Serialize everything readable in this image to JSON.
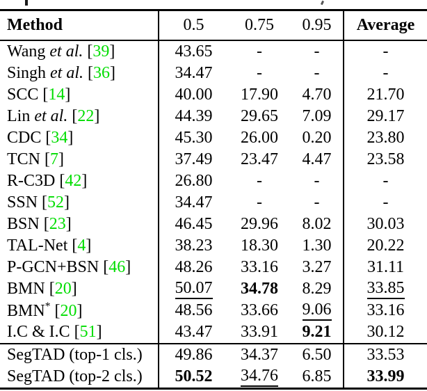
{
  "table": {
    "accent_green": "#00dd00",
    "columns": [
      "Method",
      "0.5",
      "0.75",
      "0.95",
      "Average"
    ],
    "rows": [
      {
        "method": [
          {
            "t": "Wang "
          },
          {
            "t": "et al.",
            "italic": true
          }
        ],
        "cite": "39",
        "values": [
          {
            "t": "43.65"
          },
          {
            "t": "-"
          },
          {
            "t": "-"
          },
          {
            "t": "-"
          }
        ],
        "section": "existing"
      },
      {
        "method": [
          {
            "t": "Singh "
          },
          {
            "t": "et al.",
            "italic": true
          }
        ],
        "cite": "36",
        "values": [
          {
            "t": "34.47"
          },
          {
            "t": "-"
          },
          {
            "t": "-"
          },
          {
            "t": "-"
          }
        ],
        "section": "existing"
      },
      {
        "method": [
          {
            "t": "SCC"
          }
        ],
        "cite": "14",
        "values": [
          {
            "t": "40.00"
          },
          {
            "t": "17.90"
          },
          {
            "t": "4.70"
          },
          {
            "t": "21.70"
          }
        ],
        "section": "existing"
      },
      {
        "method": [
          {
            "t": "Lin "
          },
          {
            "t": "et al.",
            "italic": true
          }
        ],
        "cite": "22",
        "values": [
          {
            "t": "44.39"
          },
          {
            "t": "29.65"
          },
          {
            "t": "7.09"
          },
          {
            "t": "29.17"
          }
        ],
        "section": "existing"
      },
      {
        "method": [
          {
            "t": "CDC"
          }
        ],
        "cite": "34",
        "values": [
          {
            "t": "45.30"
          },
          {
            "t": "26.00"
          },
          {
            "t": "0.20"
          },
          {
            "t": "23.80"
          }
        ],
        "section": "existing"
      },
      {
        "method": [
          {
            "t": "TCN"
          }
        ],
        "cite": "7",
        "values": [
          {
            "t": "37.49"
          },
          {
            "t": "23.47"
          },
          {
            "t": "4.47"
          },
          {
            "t": "23.58"
          }
        ],
        "section": "existing"
      },
      {
        "method": [
          {
            "t": "R-C3D"
          }
        ],
        "cite": "42",
        "values": [
          {
            "t": "26.80"
          },
          {
            "t": "-"
          },
          {
            "t": "-"
          },
          {
            "t": "-"
          }
        ],
        "section": "existing"
      },
      {
        "method": [
          {
            "t": "SSN"
          }
        ],
        "cite": "52",
        "values": [
          {
            "t": "34.47"
          },
          {
            "t": "-"
          },
          {
            "t": "-"
          },
          {
            "t": "-"
          }
        ],
        "section": "existing"
      },
      {
        "method": [
          {
            "t": "BSN"
          }
        ],
        "cite": "23",
        "values": [
          {
            "t": "46.45"
          },
          {
            "t": "29.96"
          },
          {
            "t": "8.02"
          },
          {
            "t": "30.03"
          }
        ],
        "section": "existing"
      },
      {
        "method": [
          {
            "t": "TAL-Net"
          }
        ],
        "cite": "4",
        "values": [
          {
            "t": "38.23"
          },
          {
            "t": "18.30"
          },
          {
            "t": "1.30"
          },
          {
            "t": "20.22"
          }
        ],
        "section": "existing"
      },
      {
        "method": [
          {
            "t": "P-GCN+BSN"
          }
        ],
        "cite": "46",
        "values": [
          {
            "t": "48.26"
          },
          {
            "t": "33.16"
          },
          {
            "t": "3.27"
          },
          {
            "t": "31.11"
          }
        ],
        "section": "existing"
      },
      {
        "method": [
          {
            "t": "BMN"
          }
        ],
        "cite": "20",
        "values": [
          {
            "t": "50.07",
            "style": "underline"
          },
          {
            "t": "34.78",
            "style": "bold"
          },
          {
            "t": "8.29"
          },
          {
            "t": "33.85",
            "style": "underline"
          }
        ],
        "section": "existing"
      },
      {
        "method": [
          {
            "t": "BMN"
          },
          {
            "t": "*",
            "sup": true
          }
        ],
        "cite": "20",
        "values": [
          {
            "t": "48.56"
          },
          {
            "t": "33.66"
          },
          {
            "t": "9.06",
            "style": "underline"
          },
          {
            "t": "33.16"
          }
        ],
        "section": "existing"
      },
      {
        "method": [
          {
            "t": "I.C & I.C"
          }
        ],
        "cite": "51",
        "values": [
          {
            "t": "43.47"
          },
          {
            "t": "33.91"
          },
          {
            "t": "9.21",
            "style": "bold"
          },
          {
            "t": "30.12"
          }
        ],
        "section": "existing"
      },
      {
        "method": [
          {
            "t": "SegTAD (top-1 cls.)"
          }
        ],
        "cite": null,
        "values": [
          {
            "t": "49.86"
          },
          {
            "t": "34.37"
          },
          {
            "t": "6.50"
          },
          {
            "t": "33.53"
          }
        ],
        "section": "segtad"
      },
      {
        "method": [
          {
            "t": "SegTAD (top-2 cls.)"
          }
        ],
        "cite": null,
        "values": [
          {
            "t": "50.52",
            "style": "bold"
          },
          {
            "t": "34.76",
            "style": "underline"
          },
          {
            "t": "6.85"
          },
          {
            "t": "33.99",
            "style": "bold"
          }
        ],
        "section": "segtad"
      }
    ]
  }
}
